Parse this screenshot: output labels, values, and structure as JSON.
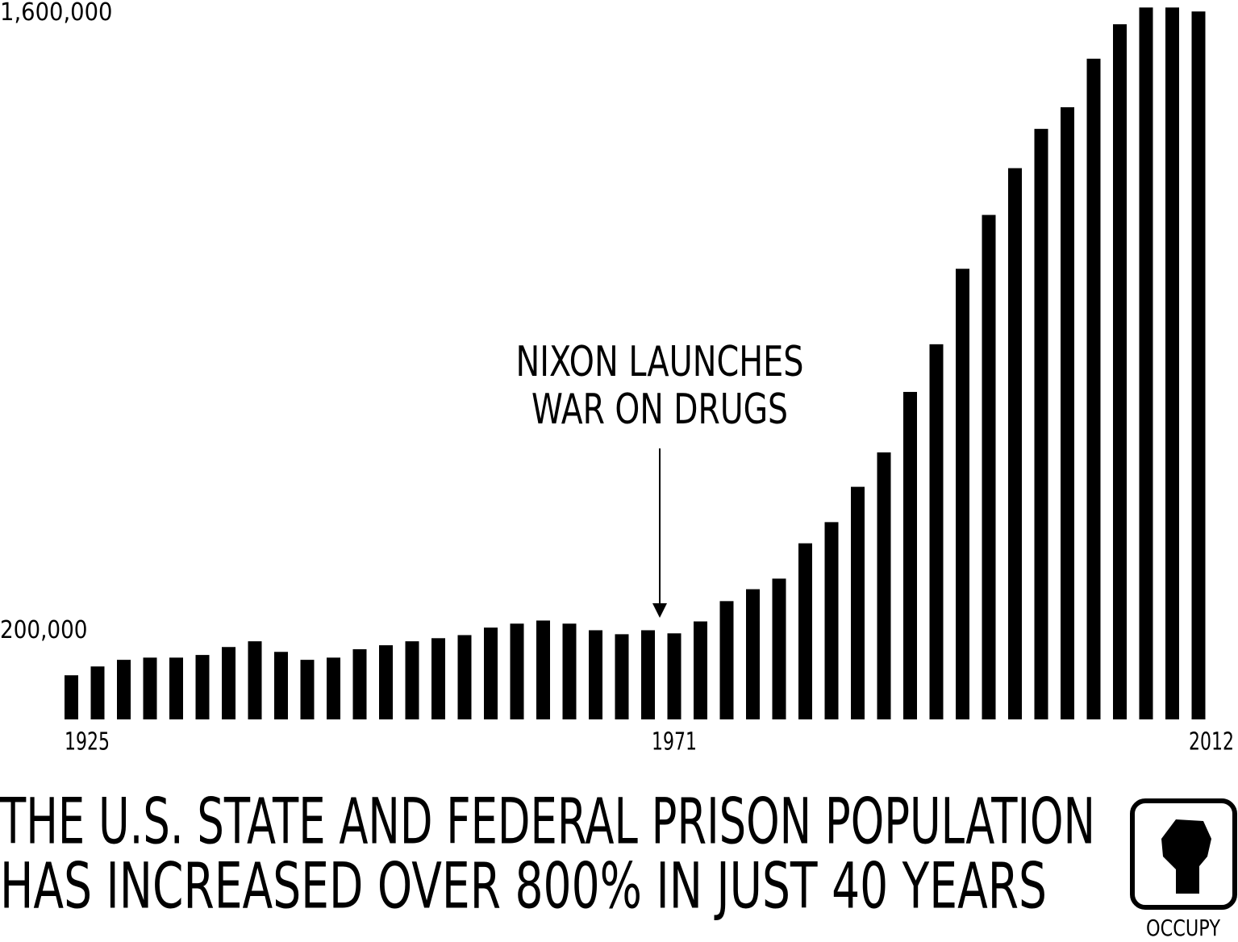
{
  "chart_data": {
    "type": "bar",
    "title": [
      "THE U.S. STATE AND FEDERAL PRISON POPULATION",
      "HAS INCREASED OVER 800% IN JUST 40 YEARS"
    ],
    "annotation": [
      "NIXON LAUNCHES",
      "WAR ON DRUGS"
    ],
    "logo": "OCCUPY",
    "categories": [
      "1925",
      null,
      null,
      null,
      null,
      null,
      null,
      null,
      null,
      null,
      null,
      null,
      null,
      null,
      null,
      null,
      null,
      null,
      null,
      null,
      null,
      null,
      null,
      "1971",
      null,
      null,
      null,
      null,
      null,
      null,
      null,
      null,
      null,
      null,
      null,
      null,
      null,
      null,
      null,
      null,
      null,
      null,
      null,
      "2012"
    ],
    "values": [
      100000,
      120000,
      135000,
      140000,
      140000,
      146000,
      164000,
      177000,
      153000,
      135000,
      140000,
      159000,
      168000,
      177000,
      184000,
      191000,
      208000,
      217000,
      224000,
      217000,
      202000,
      193000,
      202000,
      195000,
      222000,
      268000,
      295000,
      319000,
      399000,
      447000,
      527000,
      605000,
      742000,
      850000,
      1021000,
      1143000,
      1249000,
      1338000,
      1387000,
      1497000,
      1575000,
      1613000,
      1613000,
      1604000
    ],
    "color": "#000000",
    "ylim": [
      0,
      1630000
    ],
    "yticks": [
      {
        "value": 200000,
        "label": "200,000"
      },
      {
        "value": 1600000,
        "label": "1,600,000"
      }
    ],
    "grid": false
  }
}
